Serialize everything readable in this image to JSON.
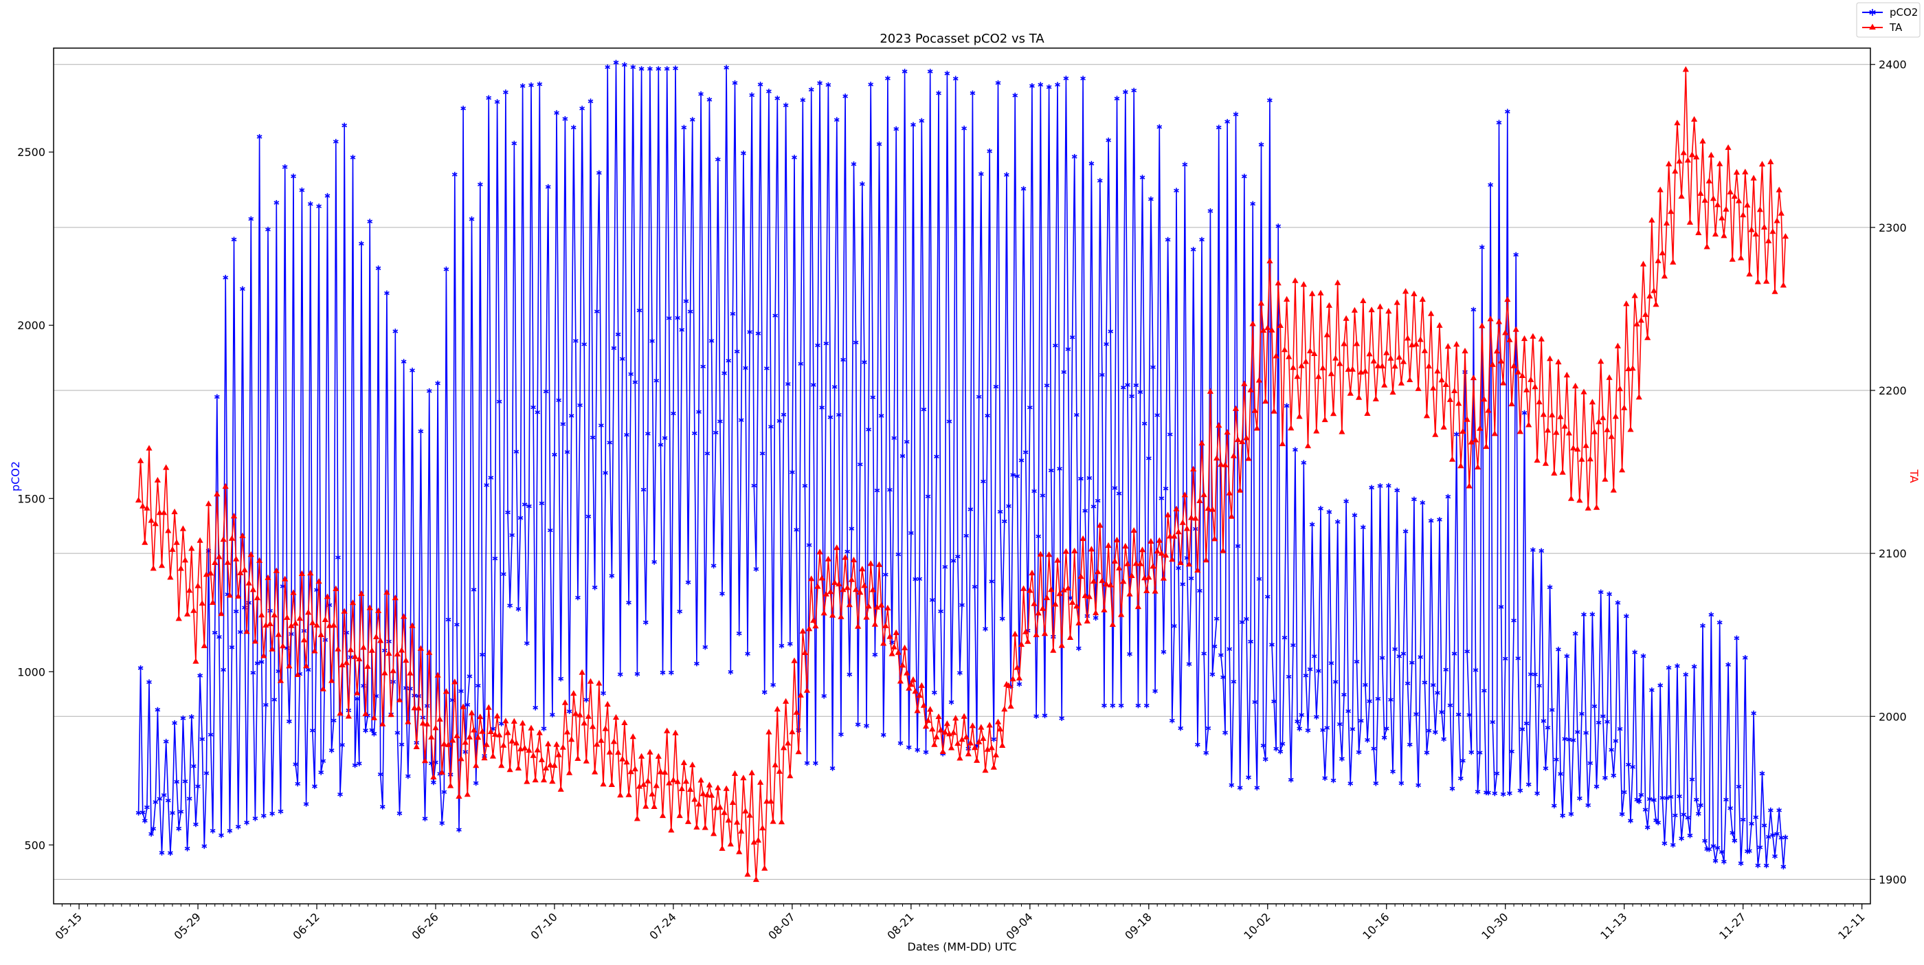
{
  "chart_data": {
    "type": "line",
    "title": "2023 Pocasset pCO2 vs TA",
    "xlabel": "Dates (MM-DD) UTC",
    "x_range": [
      "2023-05-12",
      "2023-12-12"
    ],
    "x_ticks": [
      "05-15",
      "05-29",
      "06-12",
      "06-26",
      "07-10",
      "07-24",
      "08-07",
      "08-21",
      "09-04",
      "09-18",
      "10-02",
      "10-16",
      "10-30",
      "11-13",
      "11-27",
      "12-11"
    ],
    "left_axis": {
      "label": "pCO2",
      "color": "#0000ff",
      "ylim": [
        330,
        2800
      ],
      "ticks": [
        500,
        1000,
        1500,
        2000,
        2500
      ]
    },
    "right_axis": {
      "label": "TA",
      "color": "#ff0000",
      "ylim": [
        1885,
        2410
      ],
      "ticks": [
        1900,
        2000,
        2100,
        2200,
        2300,
        2400
      ]
    },
    "grid": "horizontal lines at right-axis ticks",
    "legend": {
      "placement": "top-right, outside plot",
      "entries": [
        "pCO2",
        "TA"
      ]
    },
    "series": [
      {
        "name": "pCO2",
        "axis": "left",
        "color": "#0000ff",
        "marker": "star",
        "x": [
          "2023-05-22",
          "2023-05-25",
          "2023-05-29",
          "2023-06-01",
          "2023-06-05",
          "2023-06-08",
          "2023-06-12",
          "2023-06-15",
          "2023-06-19",
          "2023-06-22",
          "2023-06-26",
          "2023-06-29",
          "2023-07-03",
          "2023-07-06",
          "2023-07-10",
          "2023-07-13",
          "2023-07-17",
          "2023-07-20",
          "2023-07-24",
          "2023-07-27",
          "2023-07-31",
          "2023-08-03",
          "2023-08-07",
          "2023-08-10",
          "2023-08-14",
          "2023-08-17",
          "2023-08-21",
          "2023-08-24",
          "2023-08-28",
          "2023-08-31",
          "2023-09-04",
          "2023-09-07",
          "2023-09-11",
          "2023-09-14",
          "2023-09-18",
          "2023-09-21",
          "2023-09-25",
          "2023-09-28",
          "2023-10-02",
          "2023-10-05",
          "2023-10-09",
          "2023-10-12",
          "2023-10-16",
          "2023-10-19",
          "2023-10-23",
          "2023-10-26",
          "2023-10-30",
          "2023-11-02",
          "2023-11-06",
          "2023-11-09",
          "2023-11-13",
          "2023-11-16",
          "2023-11-20",
          "2023-11-23",
          "2023-11-27",
          "2023-11-30"
        ],
        "low": [
          470,
          500,
          510,
          560,
          610,
          630,
          660,
          650,
          650,
          620,
          600,
          570,
          900,
          880,
          880,
          960,
          1000,
          1050,
          1050,
          1080,
          1050,
          1000,
          950,
          650,
          900,
          870,
          820,
          800,
          820,
          850,
          880,
          900,
          950,
          950,
          950,
          900,
          800,
          700,
          700,
          720,
          730,
          700,
          720,
          710,
          700,
          690,
          680,
          700,
          610,
          620,
          620,
          540,
          520,
          480,
          470,
          460
        ],
        "high": [
          1070,
          830,
          900,
          2110,
          2550,
          2480,
          2320,
          2600,
          2230,
          1900,
          1820,
          2640,
          2660,
          2690,
          2700,
          2680,
          2760,
          2740,
          2740,
          2760,
          2740,
          2700,
          2620,
          2700,
          2680,
          2700,
          2740,
          2730,
          2720,
          2700,
          2690,
          2700,
          2740,
          2700,
          2660,
          2450,
          2550,
          2600,
          2740,
          1650,
          1500,
          1520,
          1540,
          1500,
          1460,
          2000,
          2720,
          1480,
          1060,
          1280,
          1180,
          1000,
          1020,
          1170,
          1080,
          600
        ],
        "daily_mean": [
          560,
          610,
          680,
          1040,
          1080,
          1050,
          1000,
          1000,
          980,
          900,
          800,
          960,
          1500,
          1600,
          1650,
          1700,
          1800,
          1800,
          1850,
          1900,
          1850,
          1800,
          1700,
          1600,
          1650,
          1600,
          1550,
          1500,
          1520,
          1550,
          1600,
          1650,
          1700,
          1700,
          1650,
          1400,
          1100,
          1100,
          1000,
          950,
          920,
          900,
          930,
          920,
          900,
          880,
          900,
          900,
          760,
          800,
          750,
          650,
          620,
          600,
          580,
          520
        ]
      },
      {
        "name": "TA",
        "axis": "right",
        "color": "#ff0000",
        "marker": "triangle",
        "x": [
          "2023-05-22",
          "2023-05-25",
          "2023-05-29",
          "2023-06-01",
          "2023-06-05",
          "2023-06-08",
          "2023-06-12",
          "2023-06-15",
          "2023-06-19",
          "2023-06-22",
          "2023-06-26",
          "2023-06-29",
          "2023-07-03",
          "2023-07-06",
          "2023-07-10",
          "2023-07-13",
          "2023-07-17",
          "2023-07-20",
          "2023-07-24",
          "2023-07-27",
          "2023-07-31",
          "2023-08-03",
          "2023-08-07",
          "2023-08-10",
          "2023-08-14",
          "2023-08-17",
          "2023-08-21",
          "2023-08-24",
          "2023-08-28",
          "2023-08-31",
          "2023-09-04",
          "2023-09-07",
          "2023-09-11",
          "2023-09-14",
          "2023-09-18",
          "2023-09-21",
          "2023-09-25",
          "2023-09-28",
          "2023-10-02",
          "2023-10-05",
          "2023-10-09",
          "2023-10-12",
          "2023-10-16",
          "2023-10-19",
          "2023-10-23",
          "2023-10-26",
          "2023-10-30",
          "2023-11-02",
          "2023-11-06",
          "2023-11-09",
          "2023-11-13",
          "2023-11-16",
          "2023-11-20",
          "2023-11-23",
          "2023-11-27",
          "2023-11-30"
        ],
        "low": [
          2090,
          2080,
          2030,
          2060,
          2040,
          2020,
          2020,
          2000,
          1990,
          1980,
          1950,
          1950,
          1960,
          1960,
          1950,
          1970,
          1940,
          1930,
          1930,
          1920,
          1910,
          1890,
          1950,
          2050,
          2060,
          2040,
          2010,
          1980,
          1970,
          1960,
          2040,
          2040,
          2040,
          2050,
          2070,
          2090,
          2060,
          2100,
          2140,
          2150,
          2150,
          2170,
          2190,
          2180,
          2160,
          2110,
          2170,
          2160,
          2120,
          2110,
          2140,
          2230,
          2290,
          2270,
          2260,
          2250
        ],
        "high": [
          2170,
          2160,
          2130,
          2160,
          2100,
          2100,
          2100,
          2090,
          2080,
          2070,
          2040,
          2030,
          2000,
          2000,
          1990,
          2050,
          2000,
          1990,
          2000,
          1960,
          1970,
          1980,
          2040,
          2100,
          2110,
          2100,
          2030,
          2010,
          2000,
          2000,
          2100,
          2110,
          2120,
          2120,
          2110,
          2130,
          2200,
          2190,
          2280,
          2270,
          2270,
          2260,
          2250,
          2270,
          2240,
          2230,
          2260,
          2240,
          2220,
          2210,
          2260,
          2310,
          2400,
          2360,
          2340,
          2340
        ],
        "daily_mean": [
          2140,
          2120,
          2070,
          2110,
          2070,
          2050,
          2060,
          2040,
          2040,
          2030,
          1990,
          1980,
          1990,
          1980,
          1970,
          2000,
          1980,
          1960,
          1960,
          1950,
          1940,
          1930,
          1990,
          2080,
          2080,
          2070,
          2020,
          1990,
          1985,
          1980,
          2070,
          2070,
          2080,
          2090,
          2090,
          2110,
          2140,
          2150,
          2230,
          2220,
          2220,
          2220,
          2220,
          2230,
          2200,
          2170,
          2230,
          2200,
          2170,
          2160,
          2200,
          2260,
          2350,
          2320,
          2310,
          2300
        ]
      }
    ]
  }
}
